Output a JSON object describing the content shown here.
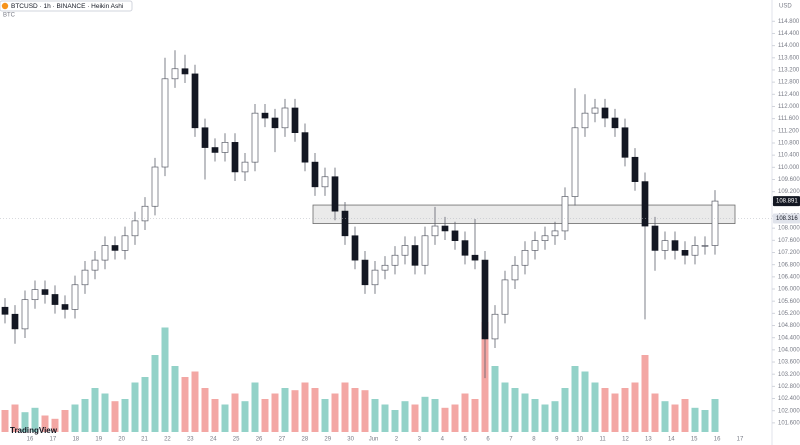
{
  "chart_data": {
    "type": "candlestick",
    "title": "BTCUSD · 1h · BINANCE · Heikin Ashi",
    "subtitle": "BTC",
    "currency": "USD",
    "brand": "TradingView",
    "ylim": [
      101.3,
      115.5
    ],
    "yticks": [
      {
        "value": 101.6,
        "label": "101.600"
      },
      {
        "value": 102.0,
        "label": "102.000"
      },
      {
        "value": 102.4,
        "label": "102.400"
      },
      {
        "value": 102.8,
        "label": "102.800"
      },
      {
        "value": 103.2,
        "label": "103.200"
      },
      {
        "value": 103.6,
        "label": "103.600"
      },
      {
        "value": 104.0,
        "label": "104.000"
      },
      {
        "value": 104.4,
        "label": "104.400"
      },
      {
        "value": 104.8,
        "label": "104.800"
      },
      {
        "value": 105.2,
        "label": "105.200"
      },
      {
        "value": 105.6,
        "label": "105.600"
      },
      {
        "value": 106.0,
        "label": "106.000"
      },
      {
        "value": 106.4,
        "label": "106.400"
      },
      {
        "value": 106.8,
        "label": "106.800"
      },
      {
        "value": 107.2,
        "label": "107.200"
      },
      {
        "value": 107.6,
        "label": "107.600"
      },
      {
        "value": 108.0,
        "label": "108.000"
      },
      {
        "value": 108.4,
        "label": "108.400"
      },
      {
        "value": 108.8,
        "label": "108.800"
      },
      {
        "value": 109.2,
        "label": "109.200"
      },
      {
        "value": 109.6,
        "label": "109.600"
      },
      {
        "value": 110.0,
        "label": "110.000"
      },
      {
        "value": 110.4,
        "label": "110.400"
      },
      {
        "value": 110.8,
        "label": "110.800"
      },
      {
        "value": 111.2,
        "label": "111.200"
      },
      {
        "value": 111.6,
        "label": "111.600"
      },
      {
        "value": 112.0,
        "label": "112.000"
      },
      {
        "value": 112.4,
        "label": "112.400"
      },
      {
        "value": 112.8,
        "label": "112.800"
      },
      {
        "value": 113.2,
        "label": "113.200"
      },
      {
        "value": 113.6,
        "label": "113.600"
      },
      {
        "value": 114.0,
        "label": "114.000"
      },
      {
        "value": 114.4,
        "label": "114.400"
      },
      {
        "value": 114.8,
        "label": "114.800"
      }
    ],
    "x_tick_labels": [
      "16",
      "17",
      "18",
      "19",
      "20",
      "21",
      "22",
      "23",
      "24",
      "25",
      "26",
      "27",
      "28",
      "29",
      "30",
      "Jun",
      "2",
      "3",
      "4",
      "5",
      "6",
      "7",
      "8",
      "9",
      "10",
      "11",
      "12",
      "13",
      "14",
      "15",
      "16",
      "17"
    ],
    "open": [
      105.4,
      105.17,
      104.69,
      105.65,
      105.98,
      105.82,
      105.49,
      105.33,
      106.14,
      106.62,
      106.95,
      107.43,
      107.27,
      107.75,
      108.24,
      108.72,
      110.01,
      112.91,
      113.24,
      113.07,
      111.3,
      110.65,
      110.49,
      110.82,
      109.85,
      110.17,
      111.78,
      111.62,
      111.3,
      111.95,
      111.14,
      110.17,
      109.36,
      109.69,
      108.56,
      107.75,
      106.95,
      106.14,
      106.62,
      106.78,
      107.11,
      107.43,
      106.78,
      107.75,
      108.07,
      107.91,
      107.59,
      107.11,
      106.95,
      104.36,
      105.17,
      106.3,
      106.78,
      107.27,
      107.59,
      107.75,
      107.91,
      109.04,
      111.3,
      111.78,
      111.95,
      111.62,
      111.3,
      110.33,
      109.53,
      108.07,
      107.27,
      107.59,
      107.27,
      107.11,
      107.43,
      107.43
    ],
    "high": [
      105.7,
      105.47,
      105.95,
      106.28,
      106.28,
      106.12,
      105.79,
      106.44,
      106.92,
      107.25,
      107.73,
      107.73,
      108.05,
      108.54,
      109.02,
      110.31,
      113.6,
      113.85,
      113.7,
      113.37,
      111.6,
      110.95,
      111.12,
      111.12,
      110.47,
      112.08,
      112.08,
      111.92,
      112.25,
      112.25,
      111.44,
      110.47,
      109.99,
      109.99,
      108.86,
      108.05,
      107.25,
      106.92,
      107.08,
      107.41,
      107.73,
      107.73,
      108.05,
      108.7,
      108.37,
      108.21,
      107.89,
      108.3,
      107.25,
      105.47,
      106.6,
      107.08,
      107.57,
      107.89,
      108.05,
      108.21,
      109.34,
      112.6,
      112.4,
      112.25,
      112.25,
      111.92,
      111.6,
      110.63,
      109.83,
      108.37,
      107.89,
      107.89,
      107.57,
      107.73,
      107.73,
      109.25
    ],
    "low": [
      104.87,
      104.2,
      104.39,
      105.35,
      105.52,
      105.19,
      105.03,
      105.03,
      105.84,
      106.32,
      106.65,
      106.97,
      106.97,
      107.45,
      107.94,
      108.42,
      109.71,
      112.61,
      112.77,
      111.0,
      109.6,
      110.19,
      110.19,
      109.55,
      109.55,
      109.87,
      111.32,
      110.5,
      111.0,
      110.84,
      109.87,
      109.06,
      109.06,
      108.26,
      107.45,
      106.65,
      105.84,
      105.84,
      106.32,
      106.48,
      106.81,
      106.48,
      106.48,
      107.45,
      107.61,
      107.29,
      106.81,
      106.65,
      103.07,
      104.06,
      104.87,
      106.0,
      106.48,
      106.97,
      107.29,
      107.45,
      107.61,
      108.74,
      111.0,
      111.48,
      111.32,
      111.0,
      110.03,
      109.23,
      105.0,
      106.6,
      106.97,
      106.97,
      106.81,
      106.81,
      107.13,
      107.13
    ],
    "close": [
      105.17,
      104.69,
      105.65,
      105.98,
      105.82,
      105.49,
      105.33,
      106.14,
      106.62,
      106.95,
      107.43,
      107.27,
      107.75,
      108.24,
      108.72,
      110.01,
      112.91,
      113.24,
      113.07,
      111.3,
      110.65,
      110.49,
      110.82,
      109.85,
      110.17,
      111.78,
      111.62,
      111.3,
      111.95,
      111.14,
      110.17,
      109.36,
      109.69,
      108.56,
      107.75,
      106.95,
      106.14,
      106.62,
      106.78,
      107.11,
      107.43,
      106.78,
      107.75,
      108.07,
      107.91,
      107.59,
      107.11,
      106.95,
      104.36,
      105.17,
      106.3,
      106.78,
      107.27,
      107.59,
      107.75,
      107.91,
      109.04,
      111.3,
      111.78,
      111.95,
      111.62,
      111.3,
      110.33,
      109.53,
      108.07,
      107.27,
      107.59,
      107.27,
      107.11,
      107.43,
      107.43,
      108.89
    ],
    "volume": [
      20,
      25,
      18,
      22,
      15,
      12,
      20,
      25,
      30,
      40,
      35,
      28,
      30,
      45,
      50,
      70,
      95,
      60,
      50,
      55,
      40,
      30,
      25,
      35,
      28,
      45,
      30,
      35,
      40,
      38,
      45,
      40,
      30,
      35,
      45,
      40,
      38,
      30,
      25,
      20,
      28,
      25,
      32,
      30,
      22,
      25,
      35,
      30,
      100,
      60,
      45,
      40,
      35,
      30,
      25,
      28,
      40,
      60,
      55,
      45,
      40,
      35,
      40,
      45,
      70,
      35,
      28,
      25,
      30,
      22,
      20,
      30
    ],
    "volume_max": 100,
    "zone": {
      "low": 108.15,
      "high": 108.76,
      "color": "#e6e6e6"
    },
    "price_markers": [
      {
        "value": 108.891,
        "color": "#131722"
      },
      {
        "value": 108.316,
        "color": "#e0e3eb"
      }
    ],
    "up_color": "#ffffff",
    "down_color": "#131722",
    "wick_color": "#5d606b",
    "volume_up_color": "#93d2c8",
    "volume_down_color": "#f3a7a4"
  }
}
